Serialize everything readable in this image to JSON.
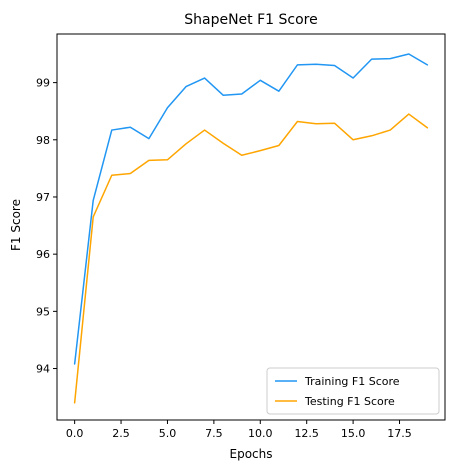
{
  "chart_data": {
    "type": "line",
    "title": "ShapeNet F1 Score",
    "xlabel": "Epochs",
    "ylabel": "F1 Score",
    "xlim": [
      -0.95,
      19.95
    ],
    "ylim": [
      93.1,
      99.85
    ],
    "x_ticks": [
      0.0,
      2.5,
      5.0,
      7.5,
      10.0,
      12.5,
      15.0,
      17.5
    ],
    "x_tick_labels": [
      "0.0",
      "2.5",
      "5.0",
      "7.5",
      "10.0",
      "12.5",
      "15.0",
      "17.5"
    ],
    "y_ticks": [
      94,
      95,
      96,
      97,
      98,
      99
    ],
    "y_tick_labels": [
      "94",
      "95",
      "96",
      "97",
      "98",
      "99"
    ],
    "grid": false,
    "legend_position": "bottom-right",
    "x": [
      0,
      1,
      2,
      3,
      4,
      5,
      6,
      7,
      8,
      9,
      10,
      11,
      12,
      13,
      14,
      15,
      16,
      17,
      18,
      19
    ],
    "series": [
      {
        "name": "Training F1 Score",
        "color": "#2196f3",
        "values": [
          94.08,
          96.94,
          98.17,
          98.22,
          98.02,
          98.56,
          98.93,
          99.08,
          98.78,
          98.8,
          99.04,
          98.85,
          99.31,
          99.32,
          99.3,
          99.08,
          99.41,
          99.42,
          99.5,
          99.31
        ]
      },
      {
        "name": "Testing F1 Score",
        "color": "#ffa500",
        "values": [
          93.4,
          96.65,
          97.38,
          97.41,
          97.64,
          97.65,
          97.93,
          98.17,
          97.94,
          97.73,
          97.81,
          97.9,
          98.32,
          98.28,
          98.29,
          98.0,
          98.07,
          98.17,
          98.45,
          98.21
        ]
      }
    ]
  }
}
